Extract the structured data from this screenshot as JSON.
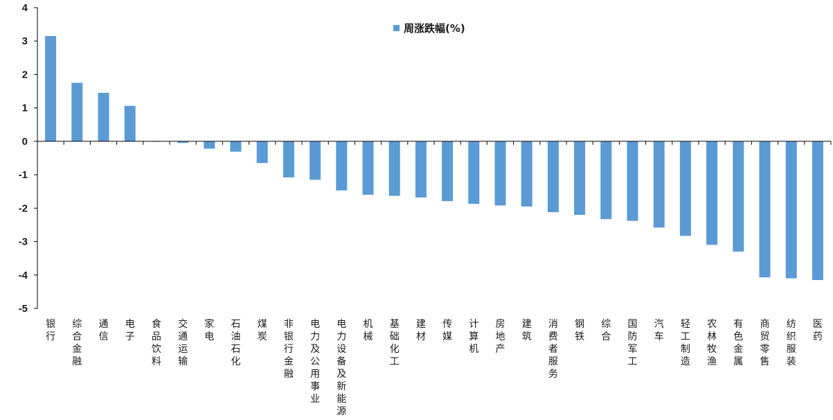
{
  "chart_data": {
    "type": "bar",
    "categories": [
      "银行",
      "综合金融",
      "通信",
      "电子",
      "食品饮料",
      "交通运输",
      "家电",
      "石油石化",
      "煤炭",
      "非银行金融",
      "电力及公用事业",
      "电力设备及新能源",
      "机械",
      "基础化工",
      "建材",
      "传媒",
      "计算机",
      "房地产",
      "建筑",
      "消费者服务",
      "钢铁",
      "综合",
      "国防军工",
      "汽车",
      "轻工制造",
      "农林牧渔",
      "有色金属",
      "商贸零售",
      "纺织服装",
      "医药"
    ],
    "series": [
      {
        "name": "周涨跌幅(%)",
        "values": [
          3.15,
          1.75,
          1.45,
          1.06,
          0.02,
          -0.05,
          -0.22,
          -0.31,
          -0.65,
          -1.08,
          -1.15,
          -1.47,
          -1.6,
          -1.63,
          -1.68,
          -1.79,
          -1.87,
          -1.92,
          -1.95,
          -2.12,
          -2.2,
          -2.33,
          -2.38,
          -2.58,
          -2.83,
          -3.1,
          -3.3,
          -4.07,
          -4.1,
          -4.15
        ]
      }
    ],
    "ylim": [
      -5,
      4
    ],
    "yticks": [
      4,
      3,
      2,
      1,
      0,
      -1,
      -2,
      -3,
      -4,
      -5
    ],
    "grid": false,
    "legend_position": "top-center",
    "bar_color": "#5b9bd5"
  }
}
